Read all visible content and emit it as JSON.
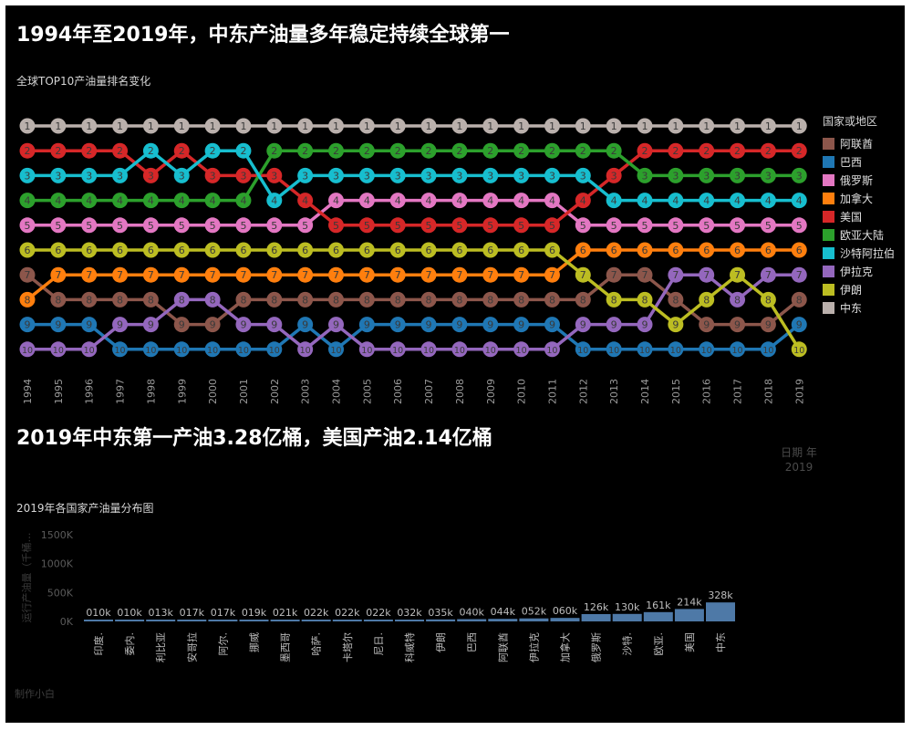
{
  "title1": "1994年至2019年，中东产油量多年稳定持续全球第一",
  "subtitle1": "全球TOP10产油量排名变化",
  "legend_title": "国家或地区",
  "title2": "2019年中东第一产油3.28亿桶，美国产油2.14亿桶",
  "date_filter_label": "日期 年",
  "date_filter_value": "2019",
  "subtitle2": "2019年各国家产油量分布图",
  "credit": "制作小白",
  "chart_data": [
    {
      "type": "line",
      "subtitle": "全球TOP10产油量排名变化",
      "x": [
        "1994",
        "1995",
        "1996",
        "1997",
        "1998",
        "1999",
        "2000",
        "2001",
        "2002",
        "2003",
        "2004",
        "2005",
        "2006",
        "2007",
        "2008",
        "2009",
        "2010",
        "2011",
        "2012",
        "2013",
        "2014",
        "2015",
        "2016",
        "2017",
        "2018",
        "2019"
      ],
      "y_meaning": "rank",
      "ylim": [
        1,
        10
      ],
      "y_reversed": true,
      "legend_title": "国家或地区",
      "legend_position": "right",
      "series": [
        {
          "name": "阿联酋",
          "color": "#8c564b",
          "values": [
            7,
            8,
            8,
            8,
            8,
            9,
            9,
            8,
            8,
            8,
            8,
            8,
            8,
            8,
            8,
            8,
            8,
            8,
            8,
            7,
            7,
            8,
            9,
            9,
            9,
            8
          ]
        },
        {
          "name": "巴西",
          "color": "#1f77b4",
          "values": [
            9,
            9,
            9,
            10,
            10,
            10,
            10,
            10,
            10,
            9,
            10,
            9,
            9,
            9,
            9,
            9,
            9,
            9,
            10,
            10,
            10,
            10,
            10,
            10,
            10,
            9
          ]
        },
        {
          "name": "俄罗斯",
          "color": "#e377c2",
          "values": [
            5,
            5,
            5,
            5,
            5,
            5,
            5,
            5,
            5,
            5,
            4,
            4,
            4,
            4,
            4,
            4,
            4,
            4,
            5,
            5,
            5,
            5,
            5,
            5,
            5,
            5
          ]
        },
        {
          "name": "加拿大",
          "color": "#ff7f0e",
          "values": [
            8,
            7,
            7,
            7,
            7,
            7,
            7,
            7,
            7,
            7,
            7,
            7,
            7,
            7,
            7,
            7,
            7,
            7,
            6,
            6,
            6,
            6,
            6,
            6,
            6,
            6
          ]
        },
        {
          "name": "美国",
          "color": "#d62728",
          "values": [
            2,
            2,
            2,
            2,
            3,
            2,
            3,
            3,
            3,
            4,
            5,
            5,
            5,
            5,
            5,
            5,
            5,
            5,
            4,
            3,
            2,
            2,
            2,
            2,
            2,
            2
          ]
        },
        {
          "name": "欧亚大陆",
          "color": "#2ca02c",
          "values": [
            4,
            4,
            4,
            4,
            4,
            4,
            4,
            4,
            2,
            2,
            2,
            2,
            2,
            2,
            2,
            2,
            2,
            2,
            2,
            2,
            3,
            3,
            3,
            3,
            3,
            3
          ]
        },
        {
          "name": "沙特阿拉伯",
          "color": "#17becf",
          "values": [
            3,
            3,
            3,
            3,
            2,
            3,
            2,
            2,
            4,
            3,
            3,
            3,
            3,
            3,
            3,
            3,
            3,
            3,
            3,
            4,
            4,
            4,
            4,
            4,
            4,
            4
          ]
        },
        {
          "name": "伊拉克",
          "color": "#9467bd",
          "values": [
            10,
            10,
            10,
            9,
            9,
            8,
            8,
            9,
            9,
            10,
            9,
            10,
            10,
            10,
            10,
            10,
            10,
            10,
            9,
            9,
            9,
            7,
            7,
            8,
            7,
            7
          ]
        },
        {
          "name": "伊朗",
          "color": "#bcbd22",
          "values": [
            6,
            6,
            6,
            6,
            6,
            6,
            6,
            6,
            6,
            6,
            6,
            6,
            6,
            6,
            6,
            6,
            6,
            6,
            7,
            8,
            8,
            9,
            8,
            7,
            8,
            10
          ]
        },
        {
          "name": "中东",
          "color": "#bab0ac",
          "values": [
            1,
            1,
            1,
            1,
            1,
            1,
            1,
            1,
            1,
            1,
            1,
            1,
            1,
            1,
            1,
            1,
            1,
            1,
            1,
            1,
            1,
            1,
            1,
            1,
            1,
            1
          ]
        }
      ]
    },
    {
      "type": "bar",
      "subtitle": "2019年各国家产油量分布图",
      "ylabel": "运行产油量（千桶…",
      "yticks": [
        "0K",
        "500K",
        "1000K",
        "1500K"
      ],
      "ylim": [
        0,
        1700
      ],
      "color": "#4e79a7",
      "categories": [
        "印度.",
        "委内.",
        "利比亚",
        "安哥拉",
        "阿尔.",
        "挪威",
        "墨西哥",
        "哈萨.",
        "卡塔尔",
        "尼日.",
        "科威特",
        "伊朗",
        "巴西",
        "阿联酋",
        "伊拉克",
        "加拿大",
        "俄罗斯",
        "沙特.",
        "欧亚.",
        "美国",
        "中东"
      ],
      "values": [
        10,
        10,
        13,
        17,
        17,
        19,
        21,
        22,
        22,
        22,
        32,
        35,
        40,
        44,
        52,
        60,
        126,
        130,
        161,
        214,
        328
      ],
      "labels": [
        "010k",
        "010k",
        "013k",
        "017k",
        "017k",
        "019k",
        "021k",
        "022k",
        "022k",
        "022k",
        "032k",
        "035k",
        "040k",
        "044k",
        "052k",
        "060k",
        "126k",
        "130k",
        "161k",
        "214k",
        "328k"
      ]
    }
  ]
}
